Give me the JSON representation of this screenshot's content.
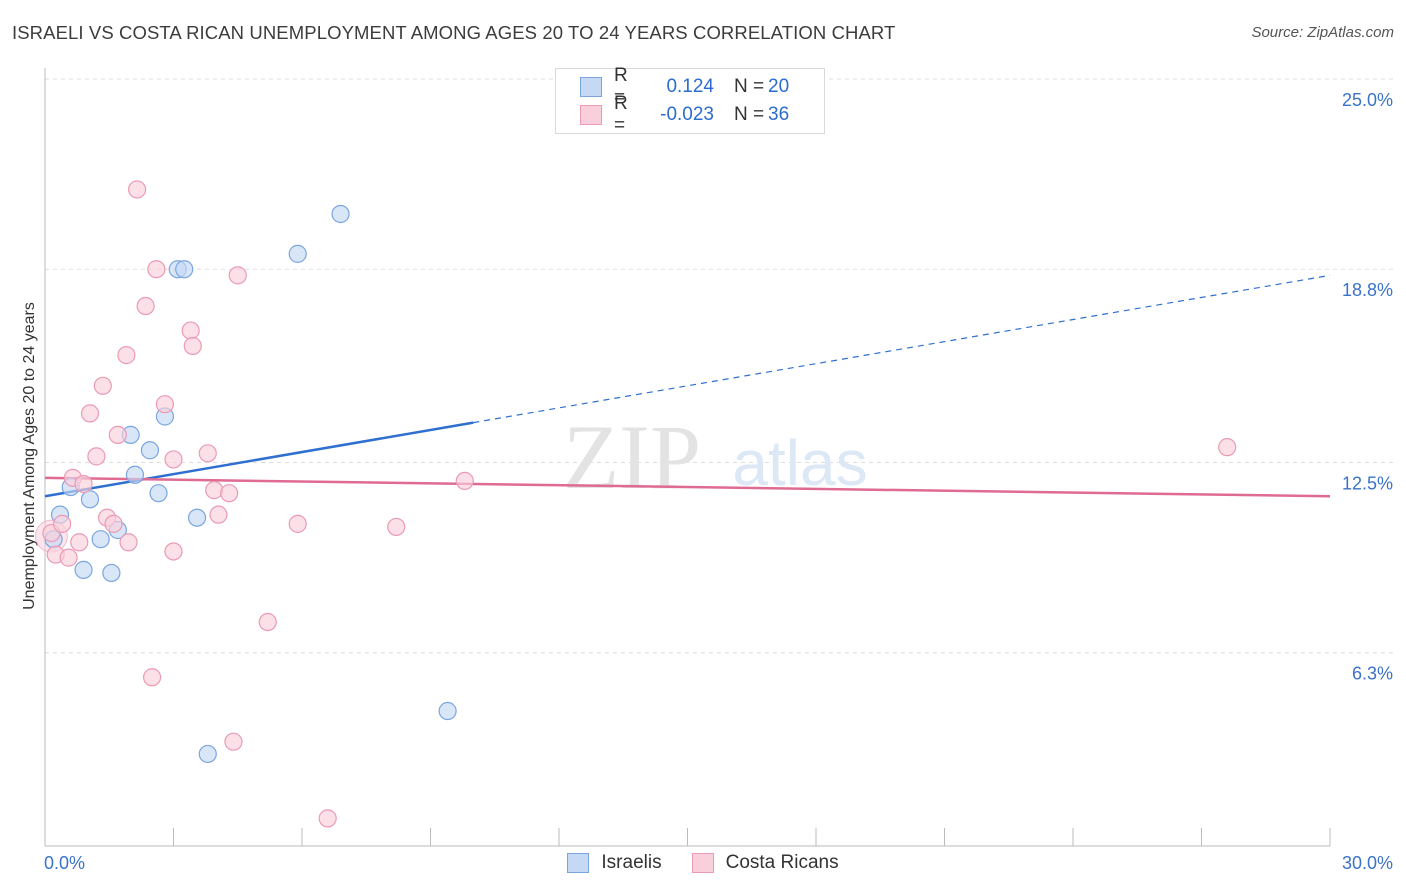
{
  "title": "ISRAELI VS COSTA RICAN UNEMPLOYMENT AMONG AGES 20 TO 24 YEARS CORRELATION CHART",
  "source": "Source: ZipAtlas.com",
  "watermark": {
    "zip": "ZIP",
    "atlas": "atlas"
  },
  "legend": {
    "rows": [
      {
        "r_label": "R =",
        "r_value": "0.124",
        "n_label": "N =",
        "n_value": "20"
      },
      {
        "r_label": "R =",
        "r_value": "-0.023",
        "n_label": "N =",
        "n_value": "36"
      }
    ],
    "bottom": [
      "Israelis",
      "Costa Ricans"
    ]
  },
  "colors": {
    "israeli_fill": "#c5d9f5",
    "israeli_stroke": "#7aa6e0",
    "israeli_line": "#2f6fd0",
    "costa_fill": "#f9cfdc",
    "costa_stroke": "#eb9ab5",
    "costa_line": "#e06b92",
    "tick_label": "#3a73c8",
    "grid": "#dddddd"
  },
  "chart_data": {
    "type": "scatter",
    "ylabel": "Unemployment Among Ages 20 to 24 years",
    "x_ticks": [
      "0.0%",
      "30.0%"
    ],
    "y_ticks": [
      "6.3%",
      "12.5%",
      "18.8%",
      "25.0%"
    ],
    "xlim": [
      0,
      30
    ],
    "ylim": [
      0,
      25
    ],
    "grid": "horizontal dashed",
    "series": [
      {
        "name": "Israelis",
        "points": [
          [
            0.2,
            10.0
          ],
          [
            0.35,
            10.8
          ],
          [
            0.6,
            11.7
          ],
          [
            0.9,
            9.0
          ],
          [
            1.05,
            11.3
          ],
          [
            1.3,
            10.0
          ],
          [
            1.55,
            8.9
          ],
          [
            1.7,
            10.3
          ],
          [
            2.0,
            13.4
          ],
          [
            2.1,
            12.1
          ],
          [
            2.45,
            12.9
          ],
          [
            2.65,
            11.5
          ],
          [
            2.8,
            14.0
          ],
          [
            3.1,
            18.8
          ],
          [
            3.25,
            18.8
          ],
          [
            3.55,
            10.7
          ],
          [
            3.8,
            3.0
          ],
          [
            5.9,
            19.3
          ],
          [
            6.9,
            20.6
          ],
          [
            9.4,
            4.4
          ]
        ],
        "trend": {
          "x": [
            0,
            30
          ],
          "y": [
            11.4,
            18.6
          ],
          "solid_until_x": 10.0
        }
      },
      {
        "name": "Costa Ricans",
        "points": [
          [
            0.15,
            10.2
          ],
          [
            0.25,
            9.5
          ],
          [
            0.4,
            10.5
          ],
          [
            0.55,
            9.4
          ],
          [
            0.65,
            12.0
          ],
          [
            0.8,
            9.9
          ],
          [
            0.9,
            11.8
          ],
          [
            1.05,
            14.1
          ],
          [
            1.2,
            12.7
          ],
          [
            1.35,
            15.0
          ],
          [
            1.45,
            10.7
          ],
          [
            1.6,
            10.5
          ],
          [
            1.7,
            13.4
          ],
          [
            1.9,
            16.0
          ],
          [
            1.95,
            9.9
          ],
          [
            2.15,
            21.4
          ],
          [
            2.35,
            17.6
          ],
          [
            2.5,
            5.5
          ],
          [
            2.6,
            18.8
          ],
          [
            2.8,
            14.4
          ],
          [
            3.0,
            12.6
          ],
          [
            3.0,
            9.6
          ],
          [
            3.4,
            16.8
          ],
          [
            3.45,
            16.3
          ],
          [
            3.8,
            12.8
          ],
          [
            3.95,
            11.6
          ],
          [
            4.05,
            10.8
          ],
          [
            4.3,
            11.5
          ],
          [
            4.5,
            18.6
          ],
          [
            4.4,
            3.4
          ],
          [
            5.2,
            7.3
          ],
          [
            5.9,
            10.5
          ],
          [
            6.6,
            0.9
          ],
          [
            8.2,
            10.4
          ],
          [
            9.8,
            11.9
          ],
          [
            27.6,
            13.0
          ]
        ],
        "trend": {
          "x": [
            0,
            30
          ],
          "y": [
            12.0,
            11.4
          ]
        }
      }
    ]
  }
}
